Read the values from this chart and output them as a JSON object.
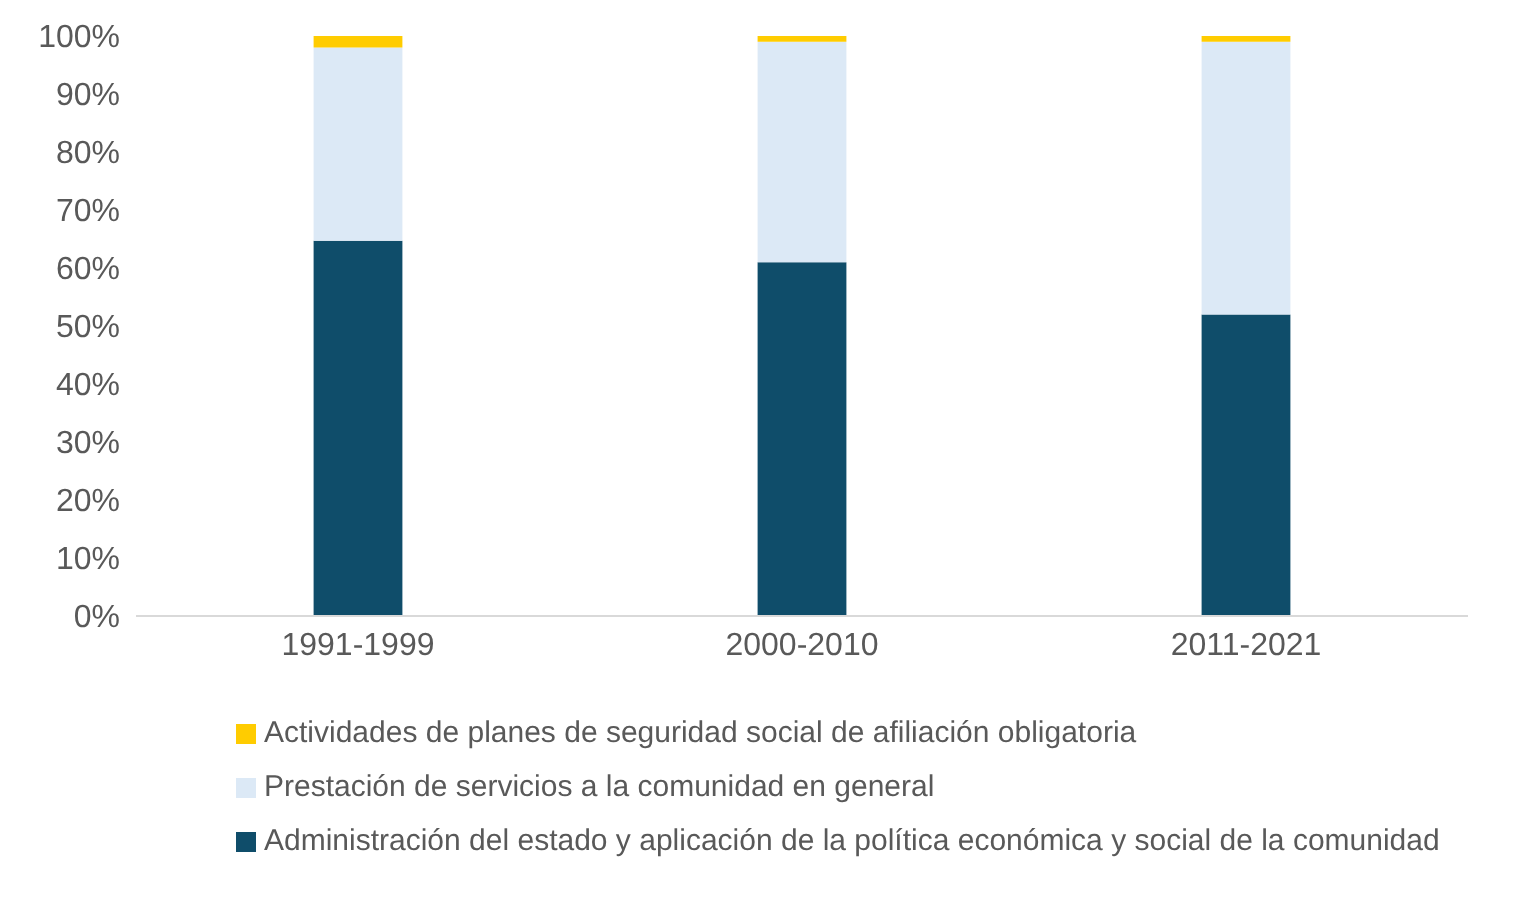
{
  "chart_data": {
    "type": "bar",
    "stacked": true,
    "categories": [
      "1991-1999",
      "2000-2010",
      "2011-2021"
    ],
    "series": [
      {
        "name": "Administración del estado y aplicación de la política económica y social de la comunidad",
        "color": "#0f4d6a",
        "values": [
          64.7,
          61,
          52
        ]
      },
      {
        "name": "Prestación de servicios a la comunidad en general",
        "color": "#dce9f6",
        "values": [
          33.3,
          38,
          47
        ]
      },
      {
        "name": "Actividades de planes de seguridad social de afiliación obligatoria",
        "color": "#ffcc00",
        "values": [
          2,
          1,
          1
        ]
      }
    ],
    "ylim": [
      0,
      100
    ],
    "yticks": [
      {
        "value": 0,
        "label": "0%"
      },
      {
        "value": 10,
        "label": "10%"
      },
      {
        "value": 20,
        "label": "20%"
      },
      {
        "value": 30,
        "label": "30%"
      },
      {
        "value": 40,
        "label": "40%"
      },
      {
        "value": 50,
        "label": "50%"
      },
      {
        "value": 60,
        "label": "60%"
      },
      {
        "value": 70,
        "label": "70%"
      },
      {
        "value": 80,
        "label": "80%"
      },
      {
        "value": 90,
        "label": "90%"
      },
      {
        "value": 100,
        "label": "100%"
      }
    ],
    "grid": false,
    "legend": "bottom"
  }
}
